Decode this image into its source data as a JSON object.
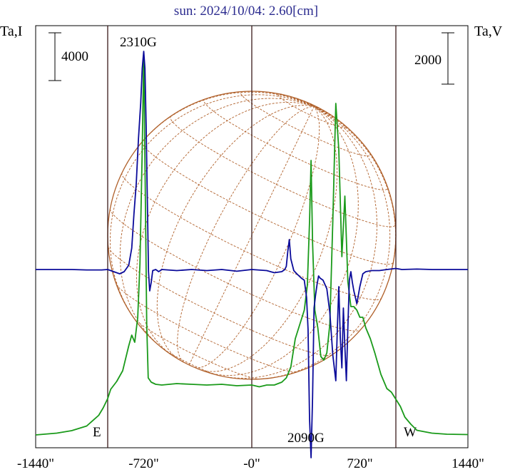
{
  "chart_data": {
    "type": "line",
    "title": "sun: 2024/10/04: 2.60[cm]",
    "ylabel_left": "Ta,I",
    "ylabel_right": "Ta,V",
    "xlabel": "",
    "x_ticks": [
      {
        "value": -1440,
        "label": "-1440\""
      },
      {
        "value": -720,
        "label": "-720\""
      },
      {
        "value": 0,
        "label": "-0\""
      },
      {
        "value": 720,
        "label": "720\""
      },
      {
        "value": 1440,
        "label": "1440\""
      }
    ],
    "xlim": [
      -1440,
      1440
    ],
    "scale_bar_left": {
      "label": "4000",
      "value": 4000
    },
    "scale_bar_right": {
      "label": "2000",
      "value": 2000
    },
    "limb_labels": {
      "east": "E",
      "west": "W"
    },
    "solar_limb_x": [
      -960,
      960
    ],
    "annotations": [
      {
        "text": "2310G",
        "x": -720,
        "series": "V"
      },
      {
        "text": "2090G",
        "x": 400,
        "series": "V"
      }
    ],
    "colors": {
      "intensity": "#1a9a1a",
      "polarization": "#0a0a9a",
      "disk": "#b0602a",
      "grid": "#3a1a1a",
      "title": "#2b2b8f"
    },
    "series": [
      {
        "key": "I",
        "x": [
          -1440,
          -1300,
          -1200,
          -1100,
          -1020,
          -990,
          -960,
          -940,
          -900,
          -860,
          -820,
          -800,
          -780,
          -760,
          -745,
          -730,
          -720,
          -710,
          -700,
          -690,
          -670,
          -640,
          -600,
          -500,
          -400,
          -300,
          -200,
          -100,
          0,
          50,
          100,
          150,
          200,
          230,
          260,
          290,
          320,
          350,
          370,
          385,
          395,
          405,
          420,
          440,
          460,
          480,
          500,
          520,
          540,
          560,
          580,
          600,
          620,
          640,
          660,
          680,
          700,
          720,
          740,
          760,
          790,
          820,
          860,
          900,
          930,
          960,
          990,
          1020,
          1060,
          1100,
          1200,
          1300,
          1440
        ],
        "y": [
          0,
          50,
          120,
          250,
          550,
          760,
          1020,
          1280,
          1500,
          1800,
          2500,
          2800,
          2600,
          3300,
          4800,
          8000,
          10650,
          7000,
          3100,
          1600,
          1480,
          1420,
          1400,
          1440,
          1420,
          1400,
          1420,
          1380,
          1400,
          1350,
          1400,
          1400,
          1480,
          1600,
          1900,
          2700,
          3100,
          3500,
          4200,
          6000,
          7700,
          5400,
          3500,
          3000,
          2200,
          2100,
          2300,
          3100,
          6000,
          9300,
          8000,
          5000,
          6700,
          4300,
          3600,
          3600,
          3500,
          3300,
          3300,
          3000,
          2700,
          2300,
          1700,
          1300,
          1200,
          1000,
          800,
          500,
          300,
          130,
          50,
          20,
          10
        ]
      },
      {
        "key": "V",
        "x": [
          -1440,
          -1300,
          -1200,
          -1100,
          -1000,
          -960,
          -920,
          -880,
          -850,
          -820,
          -800,
          -785,
          -770,
          -755,
          -740,
          -730,
          -720,
          -712,
          -704,
          -696,
          -688,
          -680,
          -670,
          -660,
          -640,
          -620,
          -600,
          -500,
          -400,
          -300,
          -200,
          -100,
          0,
          100,
          150,
          200,
          220,
          230,
          240,
          250,
          260,
          280,
          300,
          330,
          350,
          365,
          375,
          385,
          395,
          405,
          415,
          425,
          435,
          445,
          455,
          475,
          500,
          520,
          540,
          560,
          570,
          580,
          590,
          600,
          610,
          620,
          630,
          640,
          650,
          660,
          670,
          680,
          700,
          720,
          740,
          760,
          800,
          850,
          900,
          960,
          1000,
          1100,
          1200,
          1300,
          1440
        ],
        "y": [
          0,
          0,
          0,
          -20,
          -20,
          0,
          -100,
          -200,
          -100,
          200,
          1000,
          2600,
          4000,
          6100,
          7800,
          9400,
          10200,
          9400,
          6700,
          3200,
          -100,
          -1000,
          -600,
          -50,
          0,
          -100,
          0,
          -50,
          0,
          -50,
          0,
          -80,
          0,
          -50,
          -150,
          -100,
          0,
          150,
          850,
          1400,
          500,
          -50,
          -200,
          -400,
          -500,
          -1300,
          -2800,
          -7000,
          -8800,
          -6000,
          -1800,
          -1200,
          -700,
          -300,
          -400,
          -500,
          -900,
          -2000,
          -4000,
          -5200,
          -2800,
          -800,
          -3200,
          -4600,
          -1800,
          -3600,
          -5200,
          -2700,
          -500,
          -100,
          -600,
          -1000,
          -1600,
          -800,
          -200,
          -100,
          -50,
          -50,
          0,
          50,
          0,
          20,
          0,
          0,
          0
        ]
      }
    ]
  }
}
